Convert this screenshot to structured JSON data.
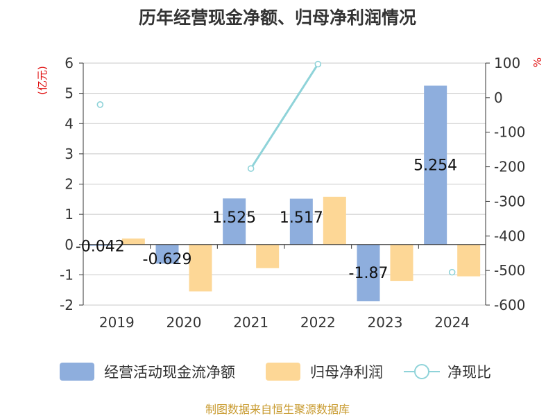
{
  "chart_data": {
    "type": "bar",
    "title": "历年经营现金净额、归母净利润情况",
    "categories": [
      "2019",
      "2020",
      "2021",
      "2022",
      "2023",
      "2024"
    ],
    "left_axis": {
      "unit": "(亿元)",
      "range": [
        -2,
        6
      ],
      "ticks": [
        "6",
        "5",
        "4",
        "3",
        "2",
        "1",
        "0",
        "-1",
        "-2"
      ]
    },
    "right_axis": {
      "unit": "%",
      "range": [
        -600,
        100
      ],
      "ticks": [
        "100",
        "0",
        "-100",
        "-200",
        "-300",
        "-400",
        "-500",
        "-600"
      ]
    },
    "series": [
      {
        "name": "经营活动现金流净额",
        "type": "bar",
        "axis": "left",
        "color": "#8eaedd",
        "values": [
          -0.042,
          -0.629,
          1.525,
          1.517,
          -1.87,
          5.254
        ],
        "labels": [
          "-0.042",
          "-0.629",
          "1.525",
          "1.517",
          "-1.87",
          "5.254"
        ]
      },
      {
        "name": "归母净利润",
        "type": "bar",
        "axis": "left",
        "color": "#fdd796",
        "values": [
          0.2,
          -1.55,
          -0.78,
          1.58,
          -1.2,
          -1.05
        ]
      },
      {
        "name": "净现比",
        "type": "line",
        "axis": "right",
        "color": "#8fd3d9",
        "values": [
          -20,
          null,
          -205,
          97,
          null,
          -505
        ]
      }
    ],
    "grid": true,
    "legend_position": "bottom"
  },
  "footer": {
    "source": "制图数据来自恒生聚源数据库"
  }
}
